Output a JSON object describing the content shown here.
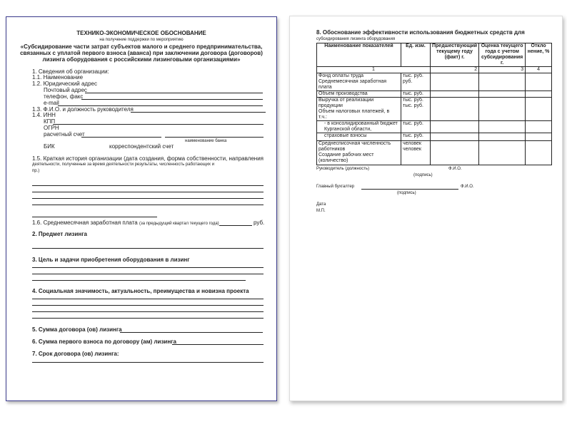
{
  "page1": {
    "title": "ТЕХНИКО-ЭКОНОМИЧЕСКОЕ ОБОСНОВАНИЕ",
    "subtitle": "на получение поддержки по мероприятию",
    "program": [
      "«Субсидирование части затрат субъектов малого и среднего предпринимательства,",
      "связанных с уплатой первого взноса (аванса) при заключении договора (договоров)",
      "лизинга оборудования с российскими лизинговыми организациями»"
    ],
    "s1": "1. Сведения об организации:",
    "s1_1": "1.1. Наименование",
    "s1_2": "1.2. Юридический адрес",
    "postal": "Почтовый адрес",
    "phone": "телефон, факс",
    "email": "e-mail",
    "s1_3": "1.3. Ф.И.О. и должность руководителя",
    "s1_4": "1.4. ИНН",
    "kpp": "КПП",
    "ogrn": "ОГРН",
    "account": "расчетный счет",
    "bank_name": "наименование банка",
    "bik": "БИК",
    "corr": "корреспондентский счет",
    "s1_5": [
      "1.5. Краткая история организации (дата создания, форма собственности, направления",
      "деятельности, полученные за время деятельности результаты, численность работающих и",
      "пр.)"
    ],
    "s1_6": "1.6. Среднемесячная заработная плата",
    "s1_6_note": "(за предыдущий квартал текущего года)",
    "rub": "руб.",
    "s2": "2. Предмет лизинга",
    "s3": "3. Цель и задачи  приобретения оборудования в лизинг",
    "s4": "4. Социальная значимость, актуальность, преимущества и новизна проекта",
    "s5": "5. Сумма договора (ов) лизинга",
    "s6": "6. Сумма первого взноса по договору (ам) лизинга",
    "s7": "7. Срок договора (ов) лизинга:"
  },
  "page2": {
    "heading": [
      "8. Обоснование эффективности использования бюджетных средств для",
      "субсидирования лизинга оборудования"
    ],
    "table": {
      "headers": [
        "Наименование показателей",
        "Ед. изм.",
        "Предшествующий текущему году (факт) г.",
        "Оценка текущего года с учетом субсидирования г.",
        "Откло нение, %"
      ],
      "numbers": [
        "1",
        "",
        "2",
        "3",
        "4"
      ],
      "rows": [
        {
          "name": "Фонд оплаты труда\nСреднемесячная заработная плата",
          "unit": "тыс. руб.\nруб."
        },
        {
          "name": "Объем производства",
          "unit": "тыс. руб."
        },
        {
          "name": "Выручка от реализации продукции\nОбъем налоговых платежей, в т.ч.:",
          "unit": "тыс. руб.\nтыс. руб."
        },
        {
          "name": "- в консолидированный бюджет Курганской области,",
          "unit": "тыс. руб."
        },
        {
          "name": "страховые взносы",
          "unit": "тыс. руб."
        },
        {
          "name": "Среднесписочная численность работников\nСоздание рабочих мест (количество)",
          "unit": "человек\nчеловек"
        }
      ]
    },
    "head": "Руководитель (должность)",
    "fio": "Ф.И.О.",
    "signature": "(подпись)",
    "accountant": "Главный бухгалтер",
    "fio2": "Ф.И.О.",
    "signature2": "(подпись)",
    "date": "Дата",
    "stamp": "М.П."
  }
}
